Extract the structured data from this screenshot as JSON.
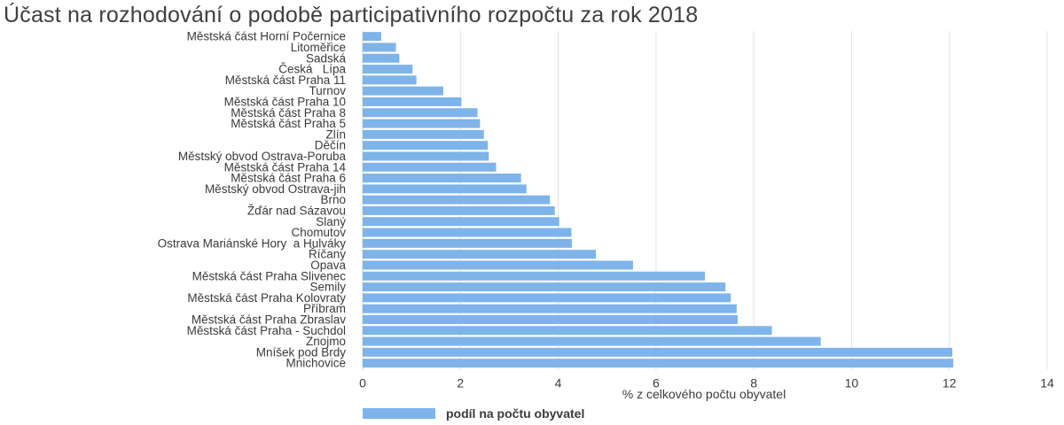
{
  "chart_data": {
    "type": "bar",
    "orientation": "horizontal",
    "title": "Účast na rozhodování o podobě participativního rozpočtu za rok 2018",
    "xlabel": "% z celkového počtu obyvatel",
    "ylabel": "",
    "xlim": [
      0,
      14
    ],
    "xticks": [
      0,
      2,
      4,
      6,
      8,
      10,
      12,
      14
    ],
    "grid": "vertical",
    "legend_position": "bottom-center",
    "bar_color": "#7eb4ea",
    "categories": [
      "Městská část Horní Počernice",
      "Litoměřice",
      "Sadská",
      "Česká   Lípa",
      "Městská část Praha 11",
      "Turnov",
      "Městská část Praha 10",
      "Městská část Praha 8",
      "Městská část Praha 5",
      "Zlín",
      "Děčín",
      "Městský obvod Ostrava-Poruba",
      "Městská část Praha 14",
      "Městská část Praha 6",
      "Městský obvod Ostrava-jih",
      "Brno",
      "Žďár nad Sázavou",
      "Slaný",
      "Chomutov",
      "Ostrava Mariánské Hory  a Hulváky",
      "Říčany",
      "Opava",
      "Městská část Praha Slivenec",
      "Semily",
      "Městská část Praha Kolovraty",
      "Příbram",
      "Městská část Praha Zbraslav",
      "Městská část Praha - Suchdol",
      "Znojmo",
      "Mníšek pod Brdy",
      "Mnichovice"
    ],
    "series": [
      {
        "name": "podíl na počtu obyvatel",
        "values": [
          0.38,
          0.68,
          0.75,
          1.02,
          1.1,
          1.65,
          2.02,
          2.35,
          2.4,
          2.48,
          2.56,
          2.58,
          2.73,
          3.24,
          3.35,
          3.83,
          3.93,
          4.02,
          4.27,
          4.28,
          4.77,
          5.53,
          7.0,
          7.42,
          7.53,
          7.65,
          7.67,
          8.37,
          9.37,
          12.06,
          12.08
        ]
      }
    ]
  }
}
